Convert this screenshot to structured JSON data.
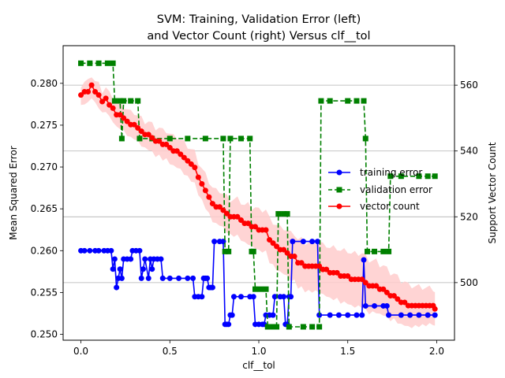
{
  "chart_data": {
    "type": "line",
    "title_line1": "SVM: Training, Validation Error (left)",
    "title_line2": "and Vector Count (right) Versus clf__tol",
    "xlabel": "clf__tol",
    "ylabel_left": "Mean Squared Error",
    "ylabel_right": "Support Vector Count",
    "xlim": [
      -0.1,
      2.1
    ],
    "ylim_left": [
      0.2493,
      0.2845
    ],
    "ylim_right": [
      482.5,
      572
    ],
    "x_ticks": [
      0.0,
      0.5,
      1.0,
      1.5,
      2.0
    ],
    "x_tick_labels": [
      "0.0",
      "0.5",
      "1.0",
      "1.5",
      "2.0"
    ],
    "y_left_ticks": [
      0.25,
      0.255,
      0.26,
      0.265,
      0.27,
      0.275,
      0.28
    ],
    "y_left_tick_labels": [
      "0.250",
      "0.255",
      "0.260",
      "0.265",
      "0.270",
      "0.275",
      "0.280"
    ],
    "y_right_ticks": [
      500,
      520,
      540,
      560
    ],
    "y_right_tick_labels": [
      "500",
      "520",
      "540",
      "560"
    ],
    "grid": "right-axis horizontal",
    "legend_position": "center-right",
    "series": [
      {
        "name": "training error",
        "axis": "left",
        "color": "#0000ff",
        "style": "solid",
        "marker": "circle",
        "points": [
          [
            0.0,
            0.26
          ],
          [
            0.02,
            0.26
          ],
          [
            0.05,
            0.26
          ],
          [
            0.08,
            0.26
          ],
          [
            0.1,
            0.26
          ],
          [
            0.13,
            0.26
          ],
          [
            0.15,
            0.26
          ],
          [
            0.17,
            0.26
          ],
          [
            0.18,
            0.2578
          ],
          [
            0.19,
            0.259
          ],
          [
            0.2,
            0.2556
          ],
          [
            0.21,
            0.2567
          ],
          [
            0.22,
            0.2578
          ],
          [
            0.23,
            0.2567
          ],
          [
            0.24,
            0.259
          ],
          [
            0.26,
            0.259
          ],
          [
            0.28,
            0.259
          ],
          [
            0.29,
            0.26
          ],
          [
            0.31,
            0.26
          ],
          [
            0.33,
            0.26
          ],
          [
            0.34,
            0.2567
          ],
          [
            0.35,
            0.2578
          ],
          [
            0.36,
            0.259
          ],
          [
            0.38,
            0.2567
          ],
          [
            0.39,
            0.259
          ],
          [
            0.4,
            0.2578
          ],
          [
            0.41,
            0.259
          ],
          [
            0.43,
            0.259
          ],
          [
            0.45,
            0.259
          ],
          [
            0.46,
            0.2567
          ],
          [
            0.5,
            0.2567
          ],
          [
            0.55,
            0.2567
          ],
          [
            0.6,
            0.2567
          ],
          [
            0.63,
            0.2567
          ],
          [
            0.64,
            0.2545
          ],
          [
            0.66,
            0.2545
          ],
          [
            0.68,
            0.2545
          ],
          [
            0.69,
            0.2567
          ],
          [
            0.7,
            0.2567
          ],
          [
            0.71,
            0.2567
          ],
          [
            0.72,
            0.2556
          ],
          [
            0.73,
            0.2556
          ],
          [
            0.74,
            0.2556
          ],
          [
            0.75,
            0.2611
          ],
          [
            0.78,
            0.2611
          ],
          [
            0.8,
            0.2611
          ],
          [
            0.81,
            0.2512
          ],
          [
            0.82,
            0.2512
          ],
          [
            0.83,
            0.2512
          ],
          [
            0.84,
            0.2523
          ],
          [
            0.85,
            0.2523
          ],
          [
            0.86,
            0.2545
          ],
          [
            0.9,
            0.2545
          ],
          [
            0.95,
            0.2545
          ],
          [
            0.97,
            0.2545
          ],
          [
            0.98,
            0.2512
          ],
          [
            1.0,
            0.2512
          ],
          [
            1.02,
            0.2512
          ],
          [
            1.03,
            0.2512
          ],
          [
            1.04,
            0.2523
          ],
          [
            1.06,
            0.2523
          ],
          [
            1.08,
            0.2523
          ],
          [
            1.09,
            0.2545
          ],
          [
            1.12,
            0.2545
          ],
          [
            1.14,
            0.2545
          ],
          [
            1.15,
            0.2512
          ],
          [
            1.16,
            0.2512
          ],
          [
            1.17,
            0.2545
          ],
          [
            1.18,
            0.2545
          ],
          [
            1.19,
            0.2611
          ],
          [
            1.25,
            0.2611
          ],
          [
            1.3,
            0.2611
          ],
          [
            1.33,
            0.2611
          ],
          [
            1.34,
            0.2523
          ],
          [
            1.4,
            0.2523
          ],
          [
            1.45,
            0.2523
          ],
          [
            1.5,
            0.2523
          ],
          [
            1.55,
            0.2523
          ],
          [
            1.58,
            0.2523
          ],
          [
            1.59,
            0.2589
          ],
          [
            1.6,
            0.2534
          ],
          [
            1.65,
            0.2534
          ],
          [
            1.7,
            0.2534
          ],
          [
            1.72,
            0.2534
          ],
          [
            1.73,
            0.2523
          ],
          [
            1.8,
            0.2523
          ],
          [
            1.85,
            0.2523
          ],
          [
            1.9,
            0.2523
          ],
          [
            1.95,
            0.2523
          ],
          [
            1.99,
            0.2523
          ]
        ]
      },
      {
        "name": "validation error",
        "axis": "left",
        "color": "#008000",
        "style": "dashed",
        "marker": "square",
        "points": [
          [
            0.0,
            0.2824
          ],
          [
            0.05,
            0.2824
          ],
          [
            0.1,
            0.2824
          ],
          [
            0.15,
            0.2824
          ],
          [
            0.18,
            0.2824
          ],
          [
            0.19,
            0.2779
          ],
          [
            0.22,
            0.2779
          ],
          [
            0.23,
            0.2734
          ],
          [
            0.24,
            0.2779
          ],
          [
            0.28,
            0.2779
          ],
          [
            0.32,
            0.2779
          ],
          [
            0.33,
            0.2734
          ],
          [
            0.4,
            0.2734
          ],
          [
            0.5,
            0.2734
          ],
          [
            0.6,
            0.2734
          ],
          [
            0.7,
            0.2734
          ],
          [
            0.8,
            0.2734
          ],
          [
            0.81,
            0.2599
          ],
          [
            0.83,
            0.2599
          ],
          [
            0.84,
            0.2734
          ],
          [
            0.9,
            0.2734
          ],
          [
            0.95,
            0.2734
          ],
          [
            0.96,
            0.2599
          ],
          [
            0.97,
            0.2599
          ],
          [
            0.98,
            0.2554
          ],
          [
            1.01,
            0.2554
          ],
          [
            1.04,
            0.2554
          ],
          [
            1.05,
            0.2509
          ],
          [
            1.08,
            0.2509
          ],
          [
            1.1,
            0.2509
          ],
          [
            1.11,
            0.2644
          ],
          [
            1.14,
            0.2644
          ],
          [
            1.16,
            0.2644
          ],
          [
            1.17,
            0.2509
          ],
          [
            1.25,
            0.2509
          ],
          [
            1.3,
            0.2509
          ],
          [
            1.34,
            0.2509
          ],
          [
            1.35,
            0.2779
          ],
          [
            1.4,
            0.2779
          ],
          [
            1.5,
            0.2779
          ],
          [
            1.55,
            0.2779
          ],
          [
            1.59,
            0.2779
          ],
          [
            1.6,
            0.2734
          ],
          [
            1.61,
            0.2599
          ],
          [
            1.65,
            0.2599
          ],
          [
            1.7,
            0.2599
          ],
          [
            1.73,
            0.2599
          ],
          [
            1.74,
            0.2689
          ],
          [
            1.8,
            0.2689
          ],
          [
            1.9,
            0.2689
          ],
          [
            1.95,
            0.2689
          ],
          [
            1.99,
            0.2689
          ]
        ]
      },
      {
        "name": "vector count",
        "axis": "right",
        "color": "#ff0000",
        "style": "solid",
        "marker": "circle",
        "band_color": "#ffcccc",
        "band_halfwidth": [
          [
            0.0,
            3
          ],
          [
            0.4,
            4
          ],
          [
            0.8,
            5
          ],
          [
            1.2,
            7
          ],
          [
            1.6,
            8
          ],
          [
            2.0,
            5
          ]
        ],
        "points": [
          [
            0.0,
            557
          ],
          [
            0.02,
            558
          ],
          [
            0.04,
            558
          ],
          [
            0.06,
            560
          ],
          [
            0.08,
            558
          ],
          [
            0.1,
            557
          ],
          [
            0.12,
            555
          ],
          [
            0.14,
            556
          ],
          [
            0.16,
            554
          ],
          [
            0.18,
            553
          ],
          [
            0.2,
            551
          ],
          [
            0.22,
            551
          ],
          [
            0.24,
            550
          ],
          [
            0.26,
            549
          ],
          [
            0.28,
            548
          ],
          [
            0.3,
            548
          ],
          [
            0.32,
            547
          ],
          [
            0.34,
            546
          ],
          [
            0.36,
            545
          ],
          [
            0.38,
            545
          ],
          [
            0.4,
            544
          ],
          [
            0.42,
            543
          ],
          [
            0.44,
            543
          ],
          [
            0.46,
            542
          ],
          [
            0.48,
            542
          ],
          [
            0.5,
            541
          ],
          [
            0.52,
            540
          ],
          [
            0.54,
            540
          ],
          [
            0.56,
            539
          ],
          [
            0.58,
            538
          ],
          [
            0.6,
            537
          ],
          [
            0.62,
            536
          ],
          [
            0.64,
            535
          ],
          [
            0.66,
            532
          ],
          [
            0.68,
            530
          ],
          [
            0.7,
            528
          ],
          [
            0.72,
            526
          ],
          [
            0.74,
            524
          ],
          [
            0.76,
            523
          ],
          [
            0.78,
            523
          ],
          [
            0.8,
            522
          ],
          [
            0.82,
            521
          ],
          [
            0.84,
            520
          ],
          [
            0.86,
            520
          ],
          [
            0.88,
            520
          ],
          [
            0.9,
            519
          ],
          [
            0.92,
            518
          ],
          [
            0.94,
            518
          ],
          [
            0.96,
            517
          ],
          [
            0.98,
            517
          ],
          [
            1.0,
            516
          ],
          [
            1.02,
            516
          ],
          [
            1.04,
            516
          ],
          [
            1.06,
            513
          ],
          [
            1.08,
            512
          ],
          [
            1.1,
            511
          ],
          [
            1.12,
            510
          ],
          [
            1.14,
            510
          ],
          [
            1.16,
            509
          ],
          [
            1.18,
            508
          ],
          [
            1.2,
            508
          ],
          [
            1.22,
            506
          ],
          [
            1.24,
            506
          ],
          [
            1.26,
            505
          ],
          [
            1.28,
            505
          ],
          [
            1.3,
            505
          ],
          [
            1.32,
            505
          ],
          [
            1.34,
            505
          ],
          [
            1.36,
            504
          ],
          [
            1.38,
            504
          ],
          [
            1.4,
            503
          ],
          [
            1.42,
            503
          ],
          [
            1.44,
            503
          ],
          [
            1.46,
            502
          ],
          [
            1.48,
            502
          ],
          [
            1.5,
            502
          ],
          [
            1.52,
            501
          ],
          [
            1.54,
            501
          ],
          [
            1.56,
            501
          ],
          [
            1.58,
            501
          ],
          [
            1.6,
            500
          ],
          [
            1.62,
            499
          ],
          [
            1.64,
            499
          ],
          [
            1.66,
            499
          ],
          [
            1.68,
            498
          ],
          [
            1.7,
            498
          ],
          [
            1.72,
            497
          ],
          [
            1.74,
            496
          ],
          [
            1.76,
            496
          ],
          [
            1.78,
            495
          ],
          [
            1.8,
            494
          ],
          [
            1.82,
            494
          ],
          [
            1.84,
            493
          ],
          [
            1.86,
            493
          ],
          [
            1.88,
            493
          ],
          [
            1.9,
            493
          ],
          [
            1.92,
            493
          ],
          [
            1.94,
            493
          ],
          [
            1.96,
            493
          ],
          [
            1.98,
            493
          ],
          [
            1.99,
            492
          ]
        ]
      }
    ]
  }
}
